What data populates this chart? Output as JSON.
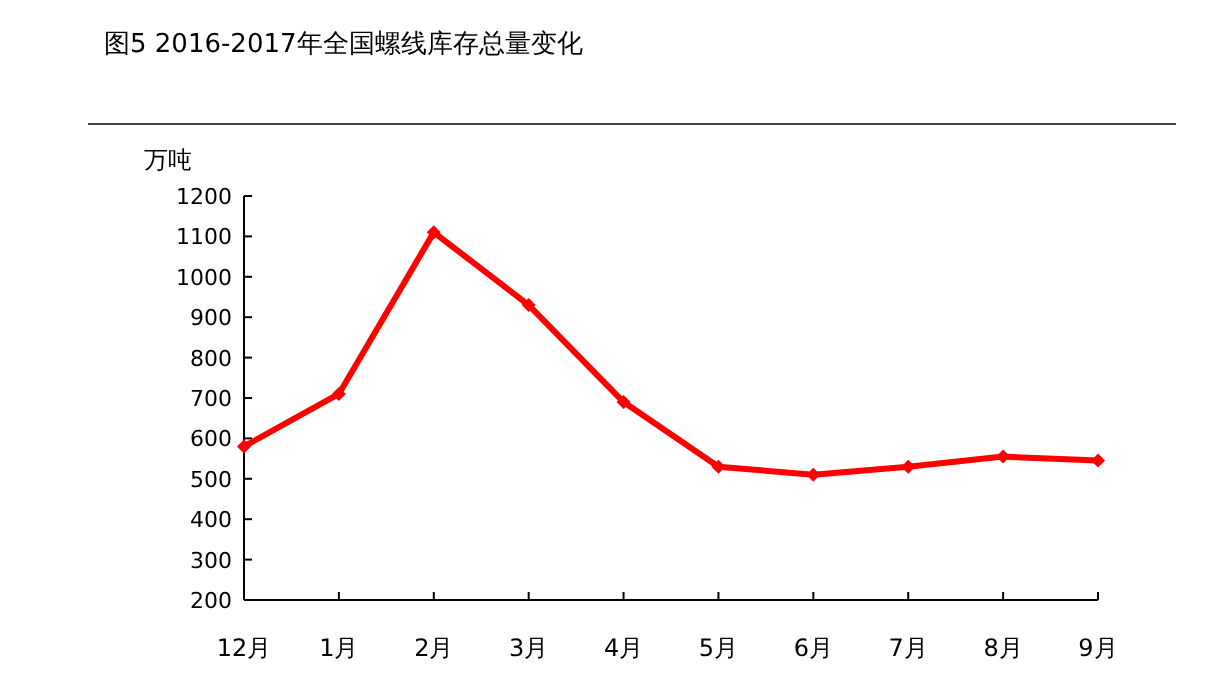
{
  "chart_data": {
    "type": "line",
    "title": "图5 2016-2017年全国螺线库存总量变化",
    "ylabel": "万吨",
    "categories": [
      "12月",
      "1月",
      "2月",
      "3月",
      "4月",
      "5月",
      "6月",
      "7月",
      "8月",
      "9月"
    ],
    "series": [
      {
        "color": "#ff0000",
        "values": [
          580,
          710,
          1110,
          930,
          690,
          530,
          510,
          530,
          555,
          545
        ]
      }
    ],
    "ylim": [
      200,
      1200
    ],
    "yticks": [
      200,
      300,
      400,
      500,
      600,
      700,
      800,
      900,
      1000,
      1100,
      1200
    ],
    "grid": false,
    "marker": "diamond",
    "line_style": "solid"
  }
}
